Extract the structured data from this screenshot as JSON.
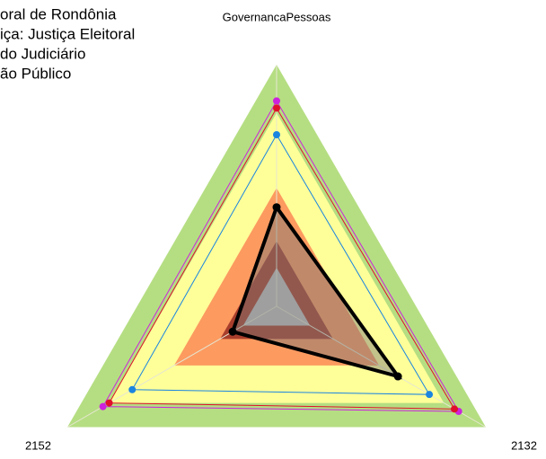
{
  "chart_data": {
    "type": "radar",
    "axes": [
      "GovernancaPessoas",
      "2132",
      "2152"
    ],
    "rlim": [
      0,
      1
    ],
    "bands": [
      {
        "value": 1.0,
        "color": "#b5de82"
      },
      {
        "value": 0.8,
        "color": "#ffff99"
      },
      {
        "value": 0.49,
        "color": "#fc9a60"
      },
      {
        "value": 0.27,
        "color": "#a83e2c"
      },
      {
        "value": 0.16,
        "color": "#bfbfbf"
      }
    ],
    "series": [
      {
        "name": "oral de Rondônia",
        "color": "#000000",
        "values": [
          0.41,
          0.58,
          0.21
        ]
      },
      {
        "name": "iça: Justiça Eleitoral",
        "color": "#1a84e0",
        "values": [
          0.71,
          0.73,
          0.69
        ]
      },
      {
        "name": " do Judiciário",
        "color": "#e0102a",
        "values": [
          0.82,
          0.85,
          0.8
        ]
      },
      {
        "name": "ão Público",
        "color": "#cc22dd",
        "values": [
          0.85,
          0.87,
          0.83
        ]
      }
    ]
  }
}
